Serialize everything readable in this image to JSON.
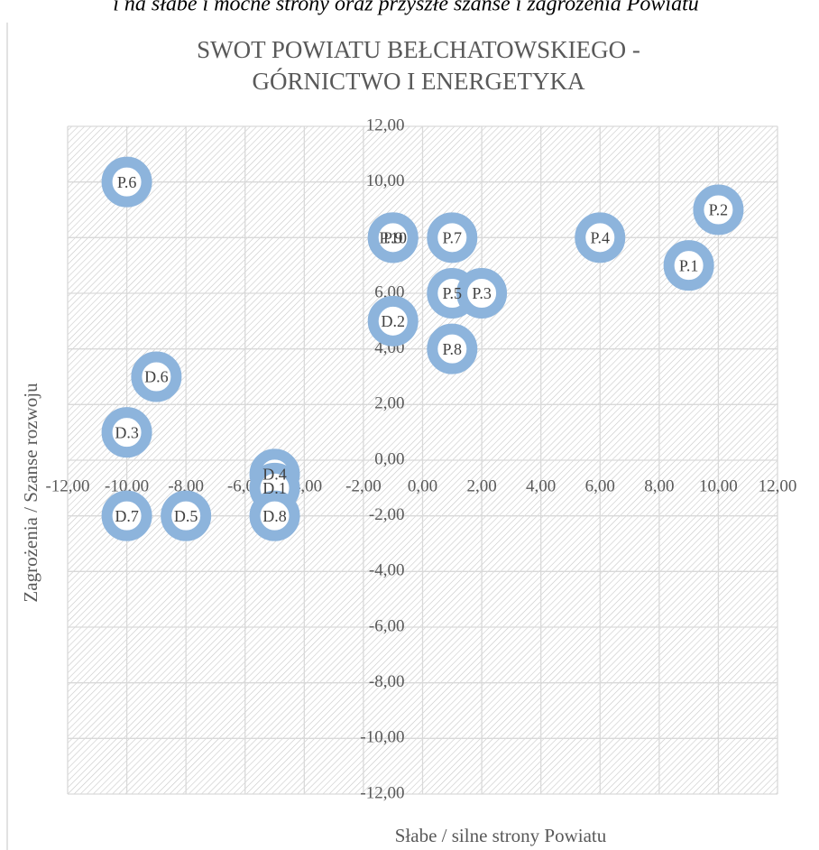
{
  "caption": "i na słabe i mocne strony oraz przyszłe szanse i zagrożenia Powiatu",
  "chart_data": {
    "type": "scatter",
    "title": [
      "SWOT POWIATU BEŁCHATOWSKIEGO -",
      "GÓRNICTWO I ENERGETYKA"
    ],
    "xlabel": "Słabe / silne strony Powiatu",
    "ylabel": "Zagrożenia / Szanse rozwoju",
    "labels": [
      "P.6",
      "P.10",
      "P.9",
      "P.7",
      "P.4",
      "P.2",
      "P.1",
      "P.5",
      "P.3",
      "D.2",
      "P.8",
      "D.6",
      "D.3",
      "D.4",
      "D.1",
      "D.8",
      "D.7",
      "D.5"
    ],
    "x": [
      -10,
      -1,
      -1,
      1,
      6,
      10,
      9,
      1,
      2,
      -1,
      1,
      -9,
      -10,
      -5,
      -5,
      -5,
      -10,
      -8
    ],
    "values": [
      10,
      8,
      8,
      8,
      8,
      9,
      7,
      6,
      6,
      5,
      4,
      3,
      1,
      -0.5,
      -1,
      -2,
      -2,
      -2
    ],
    "color": "#8db4dc",
    "grid": true,
    "xlim": [
      -12,
      12
    ],
    "ylim": [
      -12,
      12
    ],
    "xticks": [
      {
        "value": -12,
        "label": "-12,00"
      },
      {
        "value": -10,
        "label": "-10,00"
      },
      {
        "value": -8,
        "label": "-8,00"
      },
      {
        "value": -6,
        "label": "-6,00"
      },
      {
        "value": -4,
        "label": "-4,00"
      },
      {
        "value": -2,
        "label": "-2,00"
      },
      {
        "value": 0,
        "label": "0,00"
      },
      {
        "value": 2,
        "label": "2,00"
      },
      {
        "value": 4,
        "label": "4,00"
      },
      {
        "value": 6,
        "label": "6,00"
      },
      {
        "value": 8,
        "label": "8,00"
      },
      {
        "value": 10,
        "label": "10,00"
      },
      {
        "value": 12,
        "label": "12,00"
      }
    ],
    "yticks": [
      {
        "value": -12,
        "label": "-12,00"
      },
      {
        "value": -10,
        "label": "-10,00"
      },
      {
        "value": -8,
        "label": "-8,00"
      },
      {
        "value": -6,
        "label": "-6,00"
      },
      {
        "value": -4,
        "label": "-4,00"
      },
      {
        "value": -2,
        "label": "-2,00"
      },
      {
        "value": 0,
        "label": "0,00"
      },
      {
        "value": 2,
        "label": "2,00"
      },
      {
        "value": 4,
        "label": "4,00"
      },
      {
        "value": 6,
        "label": "6,00"
      },
      {
        "value": 8,
        "label": "8,00"
      },
      {
        "value": 10,
        "label": "10,00"
      },
      {
        "value": 12,
        "label": "12,00"
      }
    ]
  }
}
